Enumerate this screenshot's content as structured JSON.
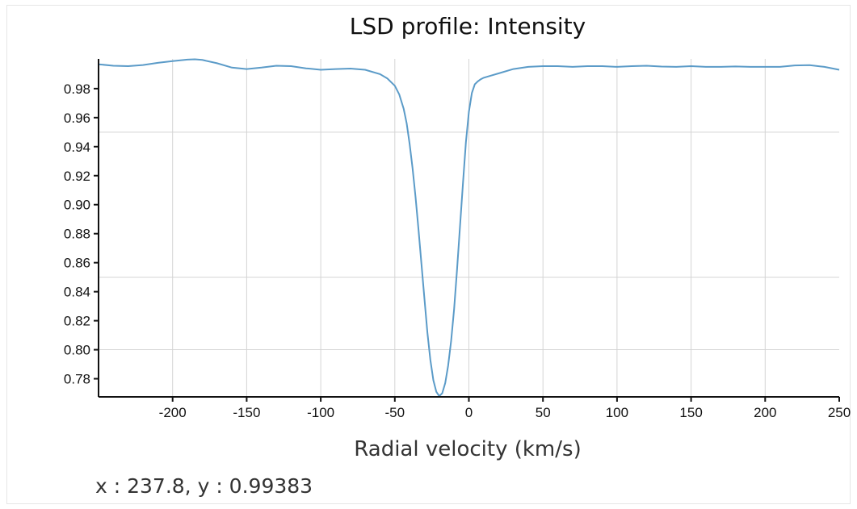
{
  "chart_data": {
    "type": "line",
    "title": "LSD profile: Intensity",
    "xlabel": "Radial velocity (km/s)",
    "ylabel": "",
    "xlim": [
      -250,
      250
    ],
    "ylim": [
      0.7675,
      1.0005
    ],
    "grid": true,
    "line_color": "#5b9bc8",
    "x_ticks": [
      {
        "value": -200,
        "label": "-200"
      },
      {
        "value": -150,
        "label": "-150"
      },
      {
        "value": -100,
        "label": "-100"
      },
      {
        "value": -50,
        "label": "-50"
      },
      {
        "value": 0,
        "label": "0"
      },
      {
        "value": 50,
        "label": "50"
      },
      {
        "value": 100,
        "label": "100"
      },
      {
        "value": 150,
        "label": "150"
      },
      {
        "value": 200,
        "label": "200"
      },
      {
        "value": 250,
        "label": "250"
      }
    ],
    "y_ticks": [
      {
        "value": 0.78,
        "label": "0.78"
      },
      {
        "value": 0.8,
        "label": "0.80"
      },
      {
        "value": 0.82,
        "label": "0.82"
      },
      {
        "value": 0.84,
        "label": "0.84"
      },
      {
        "value": 0.86,
        "label": "0.86"
      },
      {
        "value": 0.88,
        "label": "0.88"
      },
      {
        "value": 0.9,
        "label": "0.90"
      },
      {
        "value": 0.92,
        "label": "0.92"
      },
      {
        "value": 0.94,
        "label": "0.94"
      },
      {
        "value": 0.96,
        "label": "0.96"
      },
      {
        "value": 0.98,
        "label": "0.98"
      }
    ],
    "y_grid_values": [
      0.95,
      0.85,
      0.8
    ],
    "series": [
      {
        "x": [
          -250,
          -240,
          -230,
          -220,
          -210,
          -200,
          -190,
          -185,
          -180,
          -170,
          -160,
          -150,
          -140,
          -130,
          -120,
          -110,
          -100,
          -90,
          -80,
          -70,
          -60,
          -55,
          -50,
          -47,
          -44,
          -42,
          -40,
          -38,
          -36,
          -34,
          -32,
          -30,
          -28,
          -26,
          -24,
          -22,
          -20,
          -18,
          -16,
          -14,
          -12,
          -10,
          -8,
          -6,
          -4,
          -2,
          0,
          2,
          4,
          6,
          8,
          10,
          15,
          20,
          30,
          40,
          50,
          60,
          70,
          80,
          90,
          100,
          110,
          120,
          130,
          140,
          150,
          160,
          170,
          180,
          190,
          200,
          210,
          220,
          230,
          240,
          250
        ],
        "y": [
          0.9968,
          0.9958,
          0.9955,
          0.9963,
          0.9978,
          0.999,
          1.0,
          1.0002,
          0.9998,
          0.9975,
          0.9945,
          0.9935,
          0.9945,
          0.9958,
          0.9955,
          0.994,
          0.993,
          0.9935,
          0.9938,
          0.993,
          0.99,
          0.987,
          0.982,
          0.976,
          0.966,
          0.956,
          0.942,
          0.925,
          0.905,
          0.883,
          0.859,
          0.835,
          0.812,
          0.793,
          0.779,
          0.771,
          0.768,
          0.77,
          0.777,
          0.789,
          0.806,
          0.828,
          0.855,
          0.885,
          0.915,
          0.943,
          0.964,
          0.977,
          0.983,
          0.985,
          0.9865,
          0.9875,
          0.989,
          0.9905,
          0.9935,
          0.995,
          0.9955,
          0.9955,
          0.995,
          0.9955,
          0.9955,
          0.995,
          0.9955,
          0.9958,
          0.9952,
          0.995,
          0.9955,
          0.995,
          0.995,
          0.9953,
          0.995,
          0.995,
          0.995,
          0.996,
          0.9962,
          0.995,
          0.993
        ]
      }
    ]
  },
  "readout": {
    "text": "x : 237.8, y : 0.99383",
    "x": 237.8,
    "y": 0.99383
  }
}
